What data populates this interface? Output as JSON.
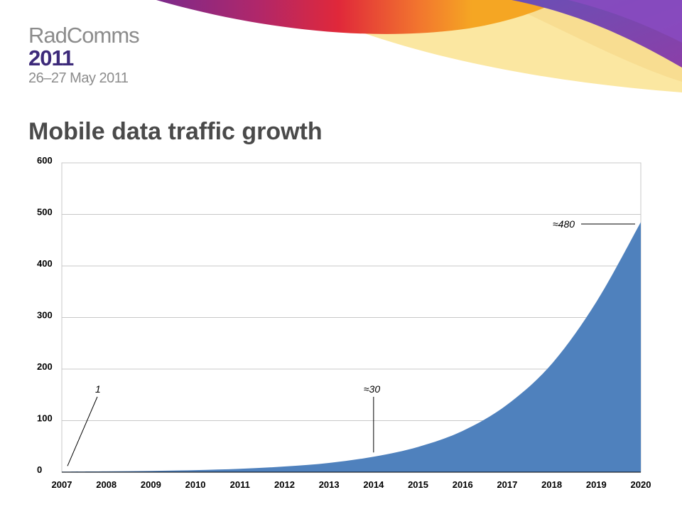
{
  "header": {
    "logo_name": "RadComms",
    "logo_year": "2011",
    "logo_dates": "26–27 May 2011"
  },
  "slide_title": "Mobile data traffic growth",
  "colors": {
    "area_fill": "#4f81bd",
    "grid": "#c8c8c8",
    "title": "#4a4a4a",
    "banner": [
      "#7b2a8c",
      "#d9263c",
      "#f2762e",
      "#fbe7a1",
      "#5a3fa0"
    ]
  },
  "chart_data": {
    "type": "area",
    "title": "Mobile data traffic growth",
    "x": [
      2007,
      2008,
      2009,
      2010,
      2011,
      2012,
      2013,
      2014,
      2015,
      2016,
      2017,
      2018,
      2019,
      2020
    ],
    "x_tick_labels": [
      "2007",
      "2008",
      "2009",
      "2010",
      "2011",
      "2012",
      "2013",
      "2014",
      "2015",
      "2016",
      "2017",
      "2018",
      "2019",
      "2020"
    ],
    "y_tick_labels": [
      "0",
      "100",
      "200",
      "300",
      "400",
      "500",
      "600"
    ],
    "y_ticks": [
      0,
      100,
      200,
      300,
      400,
      500,
      600
    ],
    "xlim": [
      2007,
      2020
    ],
    "ylim": [
      0,
      600
    ],
    "grid": true,
    "legend": "none",
    "series": [
      {
        "values": [
          1,
          1.6,
          2.5,
          4,
          6.5,
          11,
          18,
          30,
          49,
          80,
          131,
          210,
          330,
          485
        ]
      }
    ],
    "annotations": [
      {
        "text": "1",
        "x": 2007,
        "y": 1
      },
      {
        "text": "≈30",
        "x": 2014,
        "y": 30
      },
      {
        "text": "≈480",
        "x": 2020,
        "y": 480
      }
    ]
  }
}
